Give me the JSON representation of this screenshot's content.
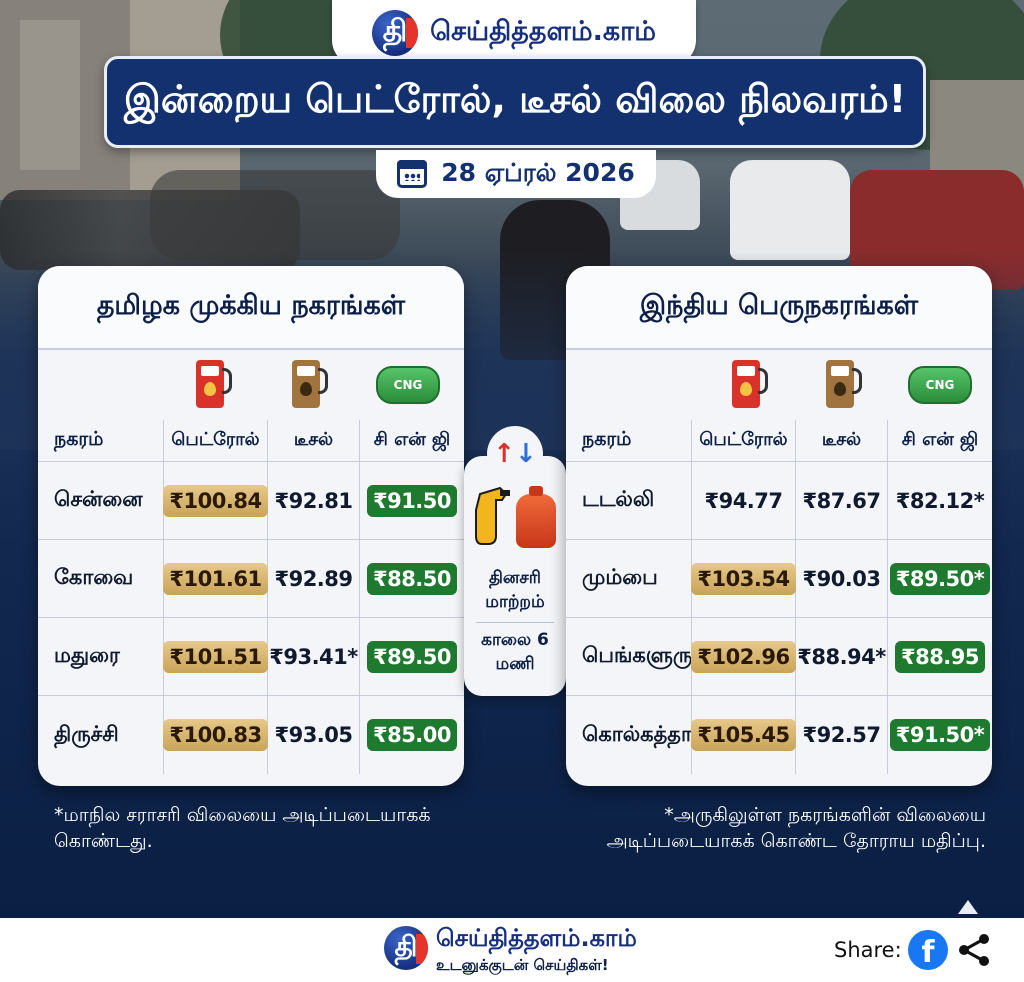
{
  "brand": {
    "name": "செய்தித்தளம்.காம்",
    "logo_letter": "தி",
    "tagline": "உடனுக்குடன் செய்திகள்!"
  },
  "headline": "இன்றைய பெட்ரோல், டீசல் விலை நிலவரம்!",
  "date": "28 ஏப்ரல் 2026",
  "columns": {
    "city": "நகரம்",
    "petrol": "பெட்ரோல்",
    "diesel": "டீசல்",
    "cng": "சி என் ஜி",
    "cng_badge": "CNG"
  },
  "tamilnadu": {
    "title": "தமிழக முக்கிய நகரங்கள்",
    "rows": [
      {
        "city": "சென்னை",
        "petrol": "₹100.84",
        "diesel": "₹92.81",
        "cng": "₹91.50"
      },
      {
        "city": "கோவை",
        "petrol": "₹101.61",
        "diesel": "₹92.89",
        "cng": "₹88.50"
      },
      {
        "city": "மதுரை",
        "petrol": "₹101.51",
        "diesel": "₹93.41*",
        "cng": "₹89.50"
      },
      {
        "city": "திருச்சி",
        "petrol": "₹100.83",
        "diesel": "₹93.05",
        "cng": "₹85.00"
      }
    ],
    "note": "*மாநில சராசரி விலையை அடிப்படையாகக் கொண்டது."
  },
  "metros": {
    "title": "இந்திய பெருநகரங்கள்",
    "rows": [
      {
        "city": "டடல்லி",
        "petrol": "₹94.77",
        "diesel": "₹87.67",
        "cng": "₹82.12*"
      },
      {
        "city": "மும்பை",
        "petrol": "₹103.54",
        "diesel": "₹90.03",
        "cng": "₹89.50*"
      },
      {
        "city": "பெங்களுரு",
        "petrol": "₹102.96",
        "diesel": "₹88.94*",
        "cng": "₹88.95"
      },
      {
        "city": "கொல்கத்தா",
        "petrol": "₹105.45",
        "diesel": "₹92.57",
        "cng": "₹91.50*"
      }
    ],
    "note": "*அருகிலுள்ள நகரங்களின் விலையை அடிப்படையாகக் கொண்ட தோராய மதிப்பு."
  },
  "middle": {
    "line1": "தினசரி மாற்றம்",
    "line2": "காலை 6 மணி"
  },
  "footer": {
    "share_label": "Share:",
    "facebook_glyph": "f"
  },
  "colors": {
    "navy": "#13306f",
    "gold": "#c9a35a",
    "green": "#1d7a2e",
    "petrol_red": "#d8322b",
    "diesel_brown": "#a0733f"
  }
}
